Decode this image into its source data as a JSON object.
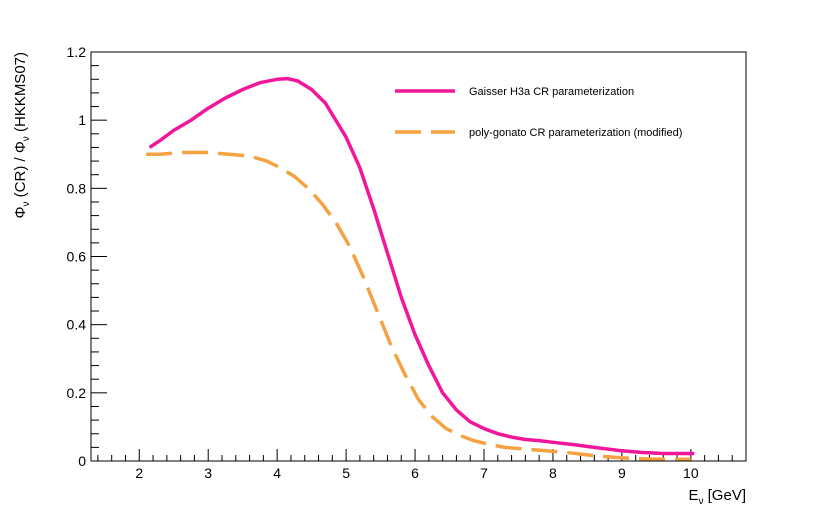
{
  "chart_data": {
    "type": "line",
    "title": "",
    "xlabel": {
      "main": "E",
      "sub": "ν",
      "rest": " [GeV]"
    },
    "ylabel": {
      "p1": "Φ",
      "s1": "ν",
      "p2": " (CR) / Φ",
      "s2": "ν",
      "p3": " (HKKMS07)"
    },
    "xlim": [
      1.3,
      10.8
    ],
    "ylim": [
      0,
      1.2
    ],
    "xticks": [
      2,
      3,
      4,
      5,
      6,
      7,
      8,
      9,
      10
    ],
    "xtick_labels": [
      "2",
      "3",
      "4",
      "5",
      "6",
      "7",
      "8",
      "9",
      "10"
    ],
    "yticks": [
      0,
      0.2,
      0.4,
      0.6,
      0.8,
      1,
      1.2
    ],
    "ytick_labels": [
      "0",
      "0.2",
      "0.4",
      "0.6",
      "0.8",
      "1",
      "1.2"
    ],
    "grid": false,
    "legend_position": "top-right",
    "series": [
      {
        "name": "Gaisser H3a CR parameterization",
        "color": "#f2169b",
        "dash": "solid",
        "x": [
          2.15,
          2.3,
          2.5,
          2.75,
          3.0,
          3.25,
          3.5,
          3.75,
          4.0,
          4.15,
          4.3,
          4.5,
          4.7,
          4.85,
          5.0,
          5.2,
          5.4,
          5.6,
          5.8,
          6.0,
          6.2,
          6.4,
          6.6,
          6.8,
          7.0,
          7.2,
          7.4,
          7.6,
          7.8,
          8.0,
          8.3,
          8.6,
          9.0,
          9.3,
          9.6,
          10.05
        ],
        "y": [
          0.92,
          0.94,
          0.97,
          1.0,
          1.035,
          1.065,
          1.09,
          1.11,
          1.12,
          1.122,
          1.115,
          1.09,
          1.05,
          1.0,
          0.95,
          0.86,
          0.74,
          0.61,
          0.48,
          0.37,
          0.28,
          0.2,
          0.15,
          0.115,
          0.095,
          0.08,
          0.07,
          0.063,
          0.06,
          0.055,
          0.048,
          0.04,
          0.03,
          0.025,
          0.022,
          0.022
        ]
      },
      {
        "name": "poly-gonato CR parameterization (modified)",
        "color": "#f5a243",
        "dash": "dashed",
        "x": [
          2.1,
          2.3,
          2.6,
          3.0,
          3.3,
          3.6,
          3.85,
          4.05,
          4.25,
          4.45,
          4.65,
          4.85,
          5.05,
          5.25,
          5.45,
          5.65,
          5.85,
          6.05,
          6.25,
          6.45,
          6.65,
          6.85,
          7.05,
          7.3,
          7.6,
          7.9,
          8.2,
          8.5,
          8.8,
          9.1,
          9.4,
          9.7,
          10.0
        ],
        "y": [
          0.9,
          0.9,
          0.905,
          0.905,
          0.9,
          0.895,
          0.88,
          0.86,
          0.835,
          0.8,
          0.755,
          0.7,
          0.63,
          0.54,
          0.44,
          0.34,
          0.255,
          0.18,
          0.13,
          0.095,
          0.075,
          0.06,
          0.05,
          0.04,
          0.035,
          0.03,
          0.025,
          0.018,
          0.012,
          0.008,
          0.006,
          0.005,
          0.005
        ]
      }
    ]
  }
}
